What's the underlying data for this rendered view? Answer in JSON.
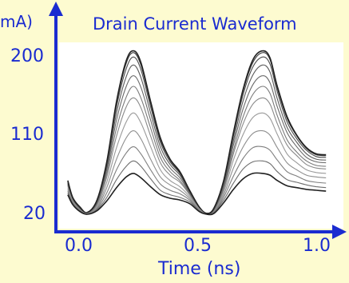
{
  "chart_data": {
    "type": "line",
    "title": "Drain Current Waveform",
    "xlabel": "Time (ns)",
    "ylabel": "mA)",
    "x_ticks": [
      "0.0",
      "0.5",
      "1.0"
    ],
    "y_ticks": [
      "200",
      "110",
      "20"
    ],
    "xlim": [
      -0.02,
      1.05
    ],
    "ylim": [
      15,
      215
    ],
    "grid": false,
    "legend": "none",
    "x": [
      -0.02,
      0.0,
      0.03,
      0.06,
      0.1,
      0.14,
      0.18,
      0.22,
      0.25,
      0.28,
      0.32,
      0.36,
      0.4,
      0.44,
      0.48,
      0.52,
      0.55,
      0.58,
      0.62,
      0.66,
      0.7,
      0.74,
      0.78,
      0.81,
      0.84,
      0.88,
      0.92,
      0.96,
      1.0,
      1.04
    ],
    "series": [
      {
        "values": [
          52,
          36,
          26,
          21,
          30,
          62,
          108,
          141,
          151,
          140,
          108,
          78,
          64,
          56,
          42,
          26,
          20,
          24,
          48,
          88,
          122,
          144,
          151,
          144,
          122,
          98,
          86,
          76,
          72,
          71
        ]
      },
      {
        "values": [
          53,
          37,
          26,
          21,
          32,
          66,
          117,
          152,
          164,
          151,
          117,
          84,
          68,
          58,
          43,
          27,
          20,
          24,
          50,
          92,
          130,
          155,
          164,
          156,
          131,
          104,
          90,
          80,
          75,
          74
        ]
      },
      {
        "values": [
          54,
          37,
          27,
          22,
          33,
          70,
          126,
          164,
          176,
          163,
          126,
          90,
          72,
          61,
          44,
          27,
          21,
          25,
          52,
          98,
          139,
          166,
          176,
          168,
          141,
          112,
          96,
          84,
          79,
          78
        ]
      },
      {
        "values": [
          55,
          38,
          27,
          22,
          34,
          73,
          134,
          175,
          188,
          174,
          134,
          96,
          76,
          64,
          45,
          28,
          21,
          26,
          54,
          103,
          148,
          177,
          188,
          180,
          150,
          118,
          101,
          88,
          82,
          81
        ]
      },
      {
        "values": [
          56,
          38,
          27,
          22,
          35,
          76,
          141,
          184,
          197,
          183,
          141,
          101,
          79,
          66,
          46,
          28,
          21,
          26,
          56,
          108,
          155,
          186,
          197,
          189,
          158,
          124,
          105,
          92,
          85,
          84
        ]
      },
      {
        "values": [
          57,
          39,
          28,
          22,
          36,
          78,
          145,
          190,
          202,
          188,
          145,
          104,
          81,
          67,
          47,
          28,
          21,
          27,
          57,
          111,
          159,
          191,
          202,
          194,
          162,
          128,
          108,
          94,
          87,
          86
        ]
      },
      {
        "values": [
          58,
          39,
          28,
          22,
          36,
          79,
          147,
          193,
          204,
          191,
          147,
          106,
          82,
          68,
          47,
          28,
          21,
          27,
          58,
          112,
          161,
          194,
          204,
          196,
          164,
          130,
          109,
          95,
          88,
          87
        ]
      },
      {
        "values": [
          50,
          35,
          25,
          21,
          28,
          56,
          95,
          124,
          134,
          123,
          96,
          70,
          58,
          51,
          40,
          26,
          20,
          23,
          45,
          81,
          110,
          129,
          134,
          128,
          110,
          88,
          78,
          70,
          67,
          66
        ]
      },
      {
        "values": [
          48,
          34,
          25,
          21,
          27,
          50,
          82,
          106,
          114,
          105,
          82,
          62,
          53,
          47,
          38,
          25,
          20,
          23,
          42,
          72,
          96,
          111,
          114,
          109,
          95,
          78,
          70,
          64,
          62,
          61
        ]
      },
      {
        "values": [
          46,
          33,
          24,
          20,
          26,
          44,
          70,
          89,
          96,
          88,
          70,
          54,
          47,
          43,
          36,
          24,
          20,
          22,
          39,
          63,
          83,
          95,
          96,
          92,
          81,
          68,
          63,
          58,
          56,
          55
        ]
      },
      {
        "values": [
          44,
          32,
          24,
          20,
          25,
          39,
          59,
          74,
          80,
          74,
          60,
          47,
          42,
          39,
          34,
          24,
          20,
          22,
          36,
          55,
          71,
          79,
          80,
          77,
          68,
          59,
          56,
          53,
          51,
          50
        ]
      },
      {
        "values": [
          42,
          31,
          23,
          20,
          24,
          35,
          50,
          62,
          66,
          61,
          51,
          42,
          38,
          36,
          32,
          23,
          20,
          21,
          33,
          48,
          60,
          66,
          66,
          64,
          58,
          52,
          50,
          48,
          47,
          46
        ]
      }
    ]
  }
}
